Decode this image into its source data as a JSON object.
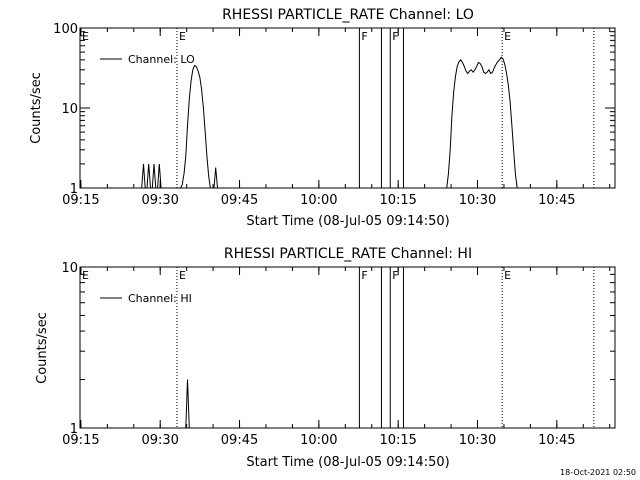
{
  "chart_data": [
    {
      "type": "line",
      "title": "RHESSI PARTICLE_RATE Channel: LO",
      "xlabel": "Start Time (08-Jul-05 09:14:50)",
      "ylabel": "Counts/sec",
      "yscale": "log",
      "xlim": [
        "09:14:50",
        "10:56:00"
      ],
      "ylim": [
        1,
        100
      ],
      "x_ticks": [
        "09:15",
        "09:30",
        "09:45",
        "10:00",
        "10:15",
        "10:30",
        "10:45"
      ],
      "y_ticks": [
        "1",
        "10",
        "100"
      ],
      "legend": "Channel: LO",
      "legend_position": "top-left",
      "solid_markers": [
        {
          "time": "10:07:40",
          "label": "F"
        },
        {
          "time": "10:11:50",
          "label": ""
        },
        {
          "time": "10:13:30",
          "label": "F"
        },
        {
          "time": "10:16:00",
          "label": ""
        }
      ],
      "dotted_markers": [
        {
          "time": "09:33:10",
          "label": "E"
        },
        {
          "time": "10:34:40",
          "label": "E"
        },
        {
          "time": "10:52:00",
          "label": ""
        }
      ],
      "series": [
        {
          "name": "Channel: LO",
          "x": [
            "09:26:30",
            "09:26:50",
            "09:27:10",
            "09:27:30",
            "09:27:50",
            "09:28:10",
            "09:28:30",
            "09:28:50",
            "09:29:10",
            "09:29:30",
            "09:29:50",
            "09:30:10",
            "09:30:30",
            "09:30:50",
            "09:31:10",
            "09:31:30",
            "09:31:50",
            "09:32:10",
            "09:32:30",
            "09:32:50",
            "09:33:10",
            "09:33:30",
            "09:33:50",
            "09:34:10",
            "09:34:30",
            "09:34:50",
            "09:35:10",
            "09:35:30",
            "09:35:50",
            "09:36:10",
            "09:36:30",
            "09:36:50",
            "09:37:10",
            "09:37:30",
            "09:37:50",
            "09:38:10",
            "09:38:30",
            "09:38:50",
            "09:39:10",
            "09:39:30",
            "09:39:50",
            "09:40:10",
            "09:40:30",
            "09:40:50",
            "10:24:10",
            "10:24:30",
            "10:24:50",
            "10:25:10",
            "10:25:30",
            "10:25:50",
            "10:26:10",
            "10:26:30",
            "10:26:50",
            "10:27:10",
            "10:27:30",
            "10:27:50",
            "10:28:10",
            "10:28:30",
            "10:28:50",
            "10:29:10",
            "10:29:30",
            "10:29:50",
            "10:30:10",
            "10:30:30",
            "10:30:50",
            "10:31:10",
            "10:31:30",
            "10:31:50",
            "10:32:10",
            "10:32:30",
            "10:32:50",
            "10:33:10",
            "10:33:30",
            "10:33:50",
            "10:34:10",
            "10:34:30",
            "10:34:50",
            "10:35:10",
            "10:35:30",
            "10:35:50",
            "10:36:10",
            "10:36:30",
            "10:36:50",
            "10:37:10",
            "10:37:30"
          ],
          "y": [
            1,
            2,
            1,
            1,
            2,
            1,
            1,
            2,
            1,
            1,
            2,
            1,
            1,
            1,
            1,
            1,
            1,
            1,
            1,
            1,
            1,
            1,
            1,
            1.1,
            1.5,
            2.5,
            6,
            13,
            22,
            30,
            34,
            33,
            29,
            24,
            17,
            10,
            5,
            2.5,
            1.4,
            1,
            1,
            1,
            1.8,
            1,
            1,
            1.5,
            3,
            8,
            16,
            25,
            33,
            38,
            40,
            37,
            33,
            29,
            27,
            29,
            30,
            28,
            30,
            33,
            37,
            36,
            33,
            28,
            27,
            28,
            30,
            27,
            28,
            32,
            35,
            38,
            40,
            43,
            41,
            35,
            27,
            19,
            12,
            6,
            3,
            1.5,
            1
          ],
          "line_color": "#000000"
        }
      ]
    },
    {
      "type": "line",
      "title": "RHESSI PARTICLE_RATE Channel: HI",
      "xlabel": "Start Time (08-Jul-05 09:14:50)",
      "ylabel": "Counts/sec",
      "yscale": "log",
      "xlim": [
        "09:14:50",
        "10:56:00"
      ],
      "ylim": [
        1,
        10
      ],
      "x_ticks": [
        "09:15",
        "09:30",
        "09:45",
        "10:00",
        "10:15",
        "10:30",
        "10:45"
      ],
      "y_ticks": [
        "1",
        "10"
      ],
      "legend": "Channel: HI",
      "legend_position": "top-left",
      "solid_markers": [
        {
          "time": "10:07:40",
          "label": "F"
        },
        {
          "time": "10:11:50",
          "label": ""
        },
        {
          "time": "10:13:30",
          "label": "F"
        },
        {
          "time": "10:16:00",
          "label": ""
        }
      ],
      "dotted_markers": [
        {
          "time": "09:33:10",
          "label": "E"
        },
        {
          "time": "10:34:40",
          "label": "E"
        },
        {
          "time": "10:52:00",
          "label": ""
        }
      ],
      "series": [
        {
          "name": "Channel: HI",
          "x": [
            "09:34:30",
            "09:34:50",
            "09:35:10",
            "09:35:30",
            "09:35:50"
          ],
          "y": [
            1,
            1,
            2,
            1,
            1
          ],
          "line_color": "#000000"
        }
      ]
    }
  ],
  "footer": {
    "timestamp": "18-Oct-2021 02:50"
  }
}
